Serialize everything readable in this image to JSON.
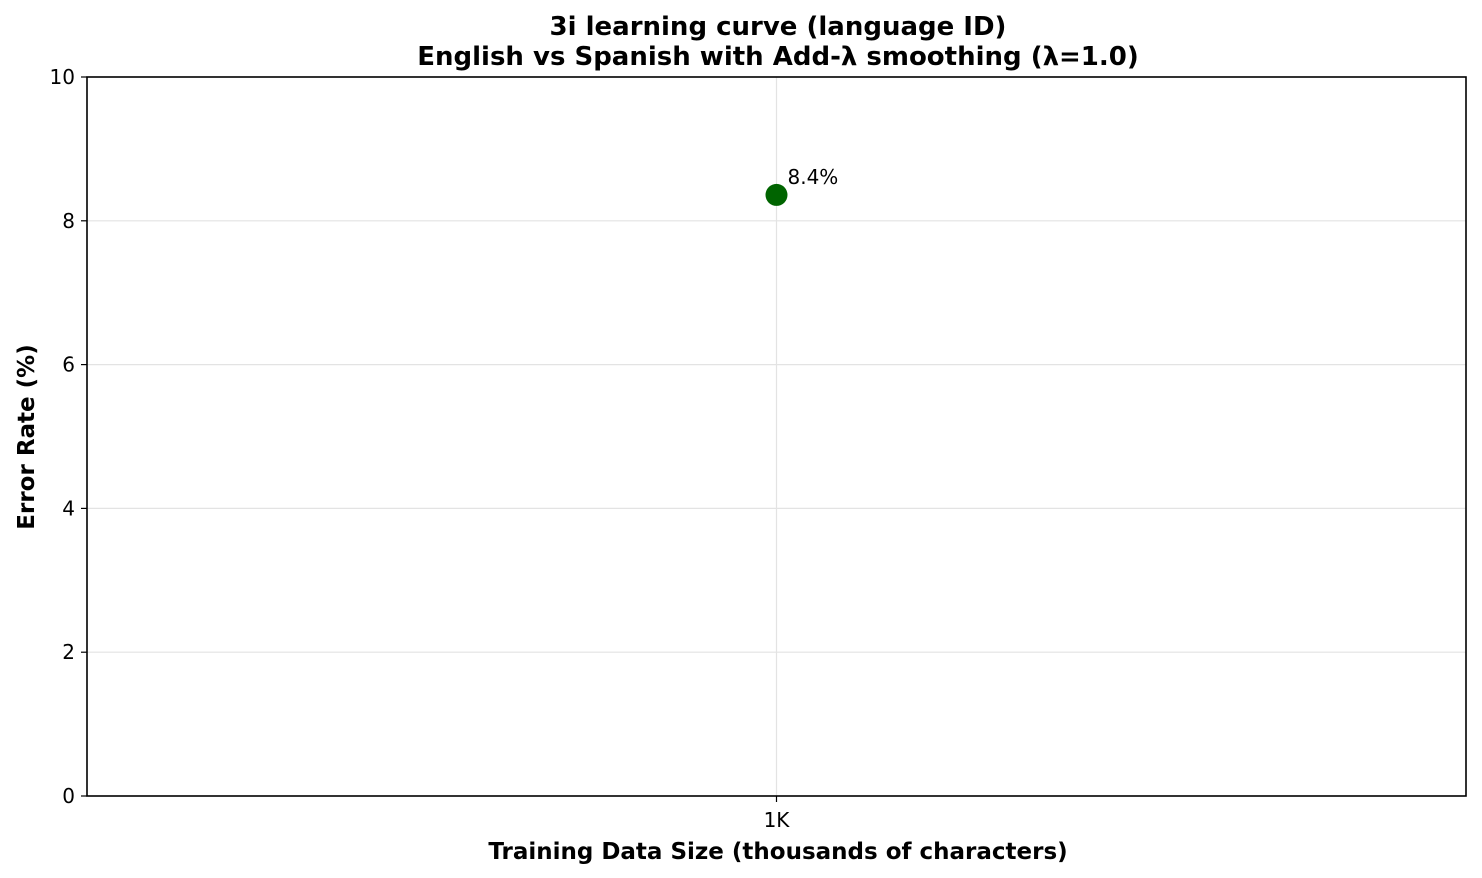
{
  "chart_data": {
    "type": "scatter",
    "title": "3i learning curve (language ID)",
    "subtitle": "English vs Spanish with Add-λ smoothing (λ=1.0)",
    "xlabel": "Training Data Size (thousands of characters)",
    "ylabel": "Error Rate (%)",
    "x_categories": [
      "1K"
    ],
    "series": [
      {
        "x": [
          "1K"
        ],
        "y": [
          8.36
        ],
        "labels": [
          "8.4%"
        ],
        "color": "#006400"
      }
    ],
    "ylim": [
      0,
      10
    ],
    "yticks": [
      0,
      2,
      4,
      6,
      8,
      10
    ],
    "grid": true
  }
}
